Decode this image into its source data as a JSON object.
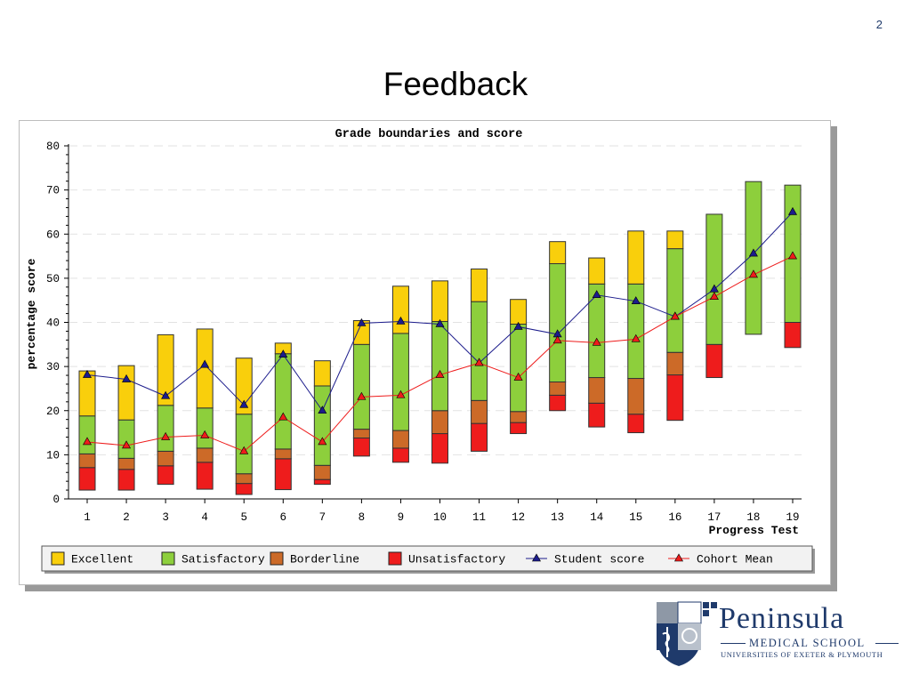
{
  "slide": {
    "number": "2",
    "title": "Feedback"
  },
  "logo": {
    "name": "Peninsula",
    "subtitle": "MEDICAL SCHOOL",
    "tagline": "UNIVERSITIES OF EXETER & PLYMOUTH"
  },
  "chart_data": {
    "type": "bar",
    "title": "Grade boundaries and score",
    "xlabel": "Progress Test",
    "ylabel": "percentage score",
    "ylim": [
      0,
      80
    ],
    "yticks": [
      0,
      10,
      20,
      30,
      40,
      50,
      60,
      70,
      80
    ],
    "grid": true,
    "legend_position": "bottom",
    "categories": [
      "1",
      "2",
      "3",
      "4",
      "5",
      "6",
      "7",
      "8",
      "9",
      "10",
      "11",
      "12",
      "13",
      "14",
      "15",
      "16",
      "17",
      "18",
      "19"
    ],
    "bands": [
      {
        "name": "Unsatisfactory",
        "color": "#ee1c1c",
        "low": [
          2,
          2,
          3.3,
          2.2,
          1,
          2.1,
          3.3,
          9.7,
          8.3,
          8.1,
          10.8,
          14.8,
          20,
          16.3,
          15,
          17.8,
          27.5,
          null,
          34.3
        ],
        "high": [
          7.1,
          6.7,
          7.5,
          8.3,
          3.5,
          9.1,
          4.4,
          13.8,
          11.5,
          14.8,
          17.1,
          17.3,
          23.5,
          21.7,
          19.2,
          28.1,
          35,
          null,
          40
        ]
      },
      {
        "name": "Borderline",
        "color": "#cc6a28",
        "low": [
          7.1,
          6.7,
          7.5,
          8.3,
          3.5,
          9.1,
          4.4,
          13.8,
          11.5,
          14.8,
          17.1,
          17.3,
          23.5,
          21.7,
          19.2,
          28.1,
          null,
          null,
          null
        ],
        "high": [
          10.2,
          9.2,
          10.8,
          11.5,
          5.7,
          11.3,
          7.6,
          15.8,
          15.5,
          20,
          22.3,
          19.8,
          26.5,
          27.5,
          27.3,
          33.2,
          null,
          null,
          null
        ]
      },
      {
        "name": "Satisfactory",
        "color": "#8dcf3c",
        "low": [
          10.2,
          9.2,
          10.8,
          11.5,
          5.7,
          11.3,
          7.6,
          15.8,
          15.5,
          20,
          22.3,
          19.8,
          26.5,
          27.5,
          27.3,
          33.2,
          35,
          37.3,
          40
        ],
        "high": [
          18.8,
          17.9,
          21.2,
          20.6,
          19.2,
          32.9,
          25.6,
          35,
          37.5,
          40.2,
          44.7,
          39.6,
          53.3,
          48.7,
          48.7,
          56.7,
          64.5,
          71.9,
          71.1
        ]
      },
      {
        "name": "Excellent",
        "color": "#f9cf0c",
        "low": [
          18.8,
          17.9,
          21.2,
          20.6,
          19.2,
          32.9,
          25.6,
          35,
          37.5,
          40.2,
          44.7,
          39.6,
          53.3,
          48.7,
          48.7,
          56.7,
          null,
          null,
          null
        ],
        "high": [
          29,
          30.2,
          37.2,
          38.5,
          31.9,
          35.3,
          31.3,
          40.4,
          48.2,
          49.4,
          52.1,
          45.2,
          58.3,
          54.6,
          60.7,
          60.7,
          null,
          null,
          null
        ]
      }
    ],
    "series": [
      {
        "name": "Student score",
        "color": "#1c1c8c",
        "values": [
          28.1,
          27.1,
          23.3,
          30.4,
          21.3,
          32.7,
          20,
          39.8,
          40.2,
          39.6,
          30.8,
          39,
          37.3,
          46.2,
          44.8,
          41.3,
          47.5,
          55.6,
          65
        ]
      },
      {
        "name": "Cohort Mean",
        "color": "#ee1c1c",
        "values": [
          12.9,
          12.1,
          14,
          14.4,
          10.8,
          18.5,
          12.9,
          23.1,
          23.5,
          28.1,
          30.8,
          27.5,
          35.9,
          35.4,
          36.2,
          41.3,
          45.8,
          50.8,
          55
        ]
      }
    ],
    "legend": [
      "Excellent",
      "Satisfactory",
      "Borderline",
      "Unsatisfactory",
      "Student score",
      "Cohort Mean"
    ]
  }
}
